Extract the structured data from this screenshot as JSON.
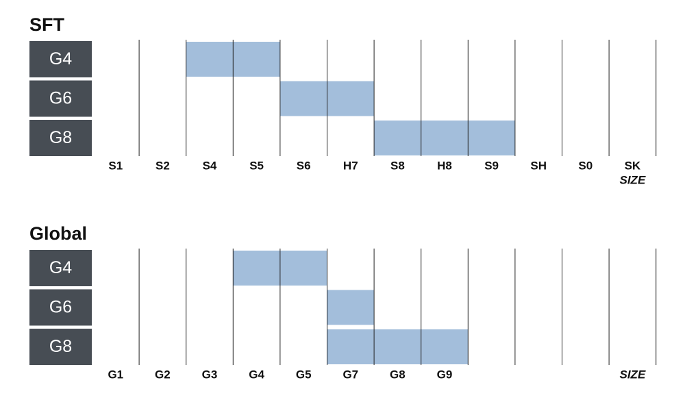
{
  "panels": [
    {
      "title": "SFT",
      "rows": [
        {
          "label": "G4",
          "span": [
            "S4",
            "S5"
          ]
        },
        {
          "label": "G6",
          "span": [
            "S6",
            "H7"
          ]
        },
        {
          "label": "G8",
          "span": [
            "S8",
            "S9"
          ]
        }
      ],
      "columns": [
        "S1",
        "S2",
        "S4",
        "S5",
        "S6",
        "H7",
        "S8",
        "H8",
        "S9",
        "SH",
        "S0",
        "SK"
      ],
      "axis_label": "SIZE"
    },
    {
      "title": "Global",
      "rows": [
        {
          "label": "G4",
          "span": [
            "G4",
            "G5"
          ]
        },
        {
          "label": "G6",
          "span": [
            "G7",
            "G7"
          ]
        },
        {
          "label": "G8",
          "span": [
            "G7",
            "G9"
          ]
        }
      ],
      "columns": [
        "G1",
        "G2",
        "G3",
        "G4",
        "G5",
        "G7",
        "G8",
        "G9",
        null,
        null,
        null,
        null
      ],
      "axis_label": "SIZE"
    }
  ]
}
